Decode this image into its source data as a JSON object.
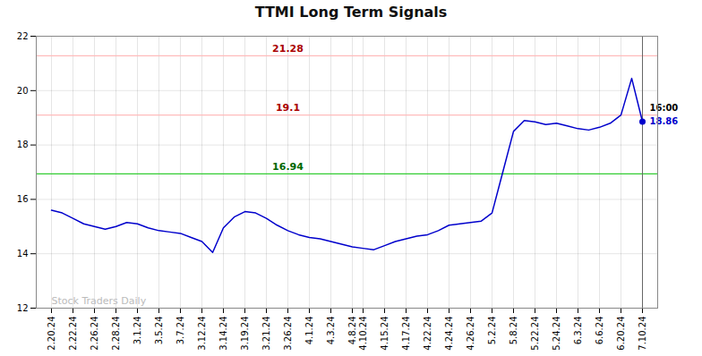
{
  "chart_data": {
    "type": "line",
    "title": "TTMI Long Term Signals",
    "categories": [
      "2.20.24",
      null,
      "2.22.24",
      null,
      "2.26.24",
      null,
      "2.28.24",
      null,
      "3.1.24",
      null,
      "3.5.24",
      null,
      "3.7.24",
      null,
      "3.12.24",
      null,
      "3.14.24",
      null,
      "3.19.24",
      null,
      "3.21.24",
      null,
      "3.26.24",
      null,
      "4.1.24",
      null,
      "4.3.24",
      null,
      "4.8.24",
      "4.10.24",
      null,
      "4.15.24",
      null,
      "4.17.24",
      null,
      "4.22.24",
      null,
      "4.24.24",
      null,
      "4.26.24",
      null,
      "5.2.24",
      null,
      "5.8.24",
      null,
      "5.22.24",
      null,
      "5.24.24",
      null,
      "6.3.24",
      null,
      "6.6.24",
      null,
      "6.20.24",
      null,
      "7.10.24"
    ],
    "series": [
      {
        "color": "#0000cc",
        "marker": "last",
        "values": [
          15.6,
          15.5,
          15.3,
          15.1,
          15.0,
          14.9,
          15.0,
          15.15,
          15.1,
          14.95,
          14.85,
          14.8,
          14.75,
          14.6,
          14.45,
          14.05,
          14.95,
          15.35,
          15.55,
          15.5,
          15.3,
          15.05,
          14.85,
          14.7,
          14.6,
          14.55,
          14.45,
          14.35,
          14.25,
          14.2,
          14.15,
          14.3,
          14.45,
          14.55,
          14.65,
          14.7,
          14.85,
          15.05,
          15.1,
          15.15,
          15.2,
          15.5,
          17.0,
          18.5,
          18.9,
          18.85,
          18.75,
          18.8,
          18.7,
          18.6,
          18.55,
          18.65,
          18.8,
          19.1,
          20.45,
          18.86
        ]
      }
    ],
    "hlines": [
      {
        "value": 21.28,
        "label": "21.28",
        "color": "#ffbbbb",
        "label_color": "#aa0000"
      },
      {
        "value": 19.1,
        "label": "19.1",
        "color": "#ffbbbb",
        "label_color": "#aa0000"
      },
      {
        "value": 16.94,
        "label": "16.94",
        "color": "#33cc33",
        "label_color": "#006600"
      }
    ],
    "vline": {
      "color": "#666666"
    },
    "end_labels": [
      {
        "text": "16:00",
        "color": "#000000"
      },
      {
        "text": "18.86",
        "color": "#0000cc"
      }
    ],
    "watermark": {
      "text": "Stock Traders Daily",
      "color": "#bbbbbb"
    },
    "ylim": [
      12,
      22
    ],
    "yticks": [
      12,
      14,
      16,
      18,
      20,
      22
    ],
    "grid": true
  }
}
